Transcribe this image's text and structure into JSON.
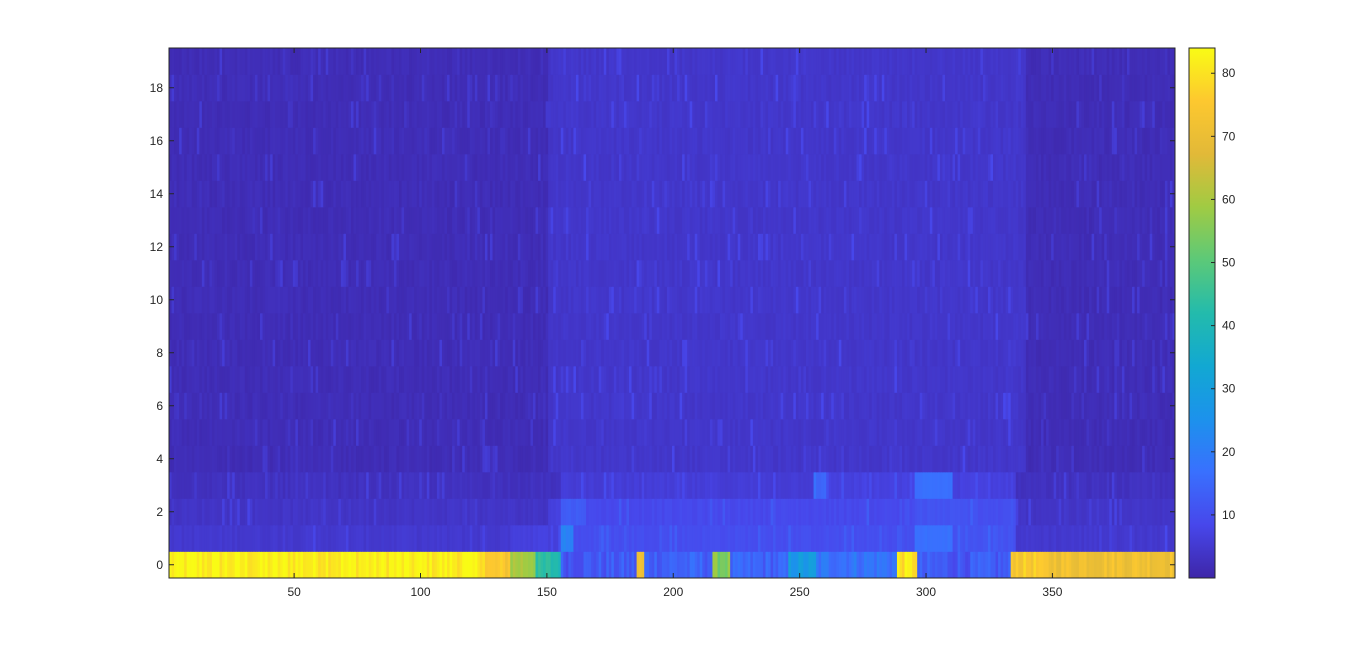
{
  "chart_data": {
    "type": "heatmap",
    "title": "",
    "xlabel": "",
    "ylabel": "",
    "x_range": [
      1,
      398
    ],
    "y_range": [
      0,
      19
    ],
    "xlim": [
      0.5,
      398.5
    ],
    "ylim": [
      -0.5,
      19.5
    ],
    "x_ticks": [
      50,
      100,
      150,
      200,
      250,
      300,
      350
    ],
    "y_ticks": [
      0,
      2,
      4,
      6,
      8,
      10,
      12,
      14,
      16,
      18
    ],
    "colormap": "parula",
    "colorbar": {
      "location": "right",
      "limits": [
        0,
        84
      ],
      "ticks": [
        10,
        20,
        30,
        40,
        50,
        60,
        70,
        80
      ]
    },
    "row_profiles": [
      {
        "y": 0,
        "segments": [
          {
            "x": [
              1,
              125
            ],
            "value": 82
          },
          {
            "x": [
              126,
              135
            ],
            "value": 74
          },
          {
            "x": [
              136,
              145
            ],
            "value": 60
          },
          {
            "x": [
              146,
              155
            ],
            "value": 42
          },
          {
            "x": [
              156,
              185
            ],
            "value": 12
          },
          {
            "x": [
              186,
              188
            ],
            "value": 70
          },
          {
            "x": [
              189,
              215
            ],
            "value": 14
          },
          {
            "x": [
              216,
              222
            ],
            "value": 55
          },
          {
            "x": [
              223,
              245
            ],
            "value": 14
          },
          {
            "x": [
              246,
              256
            ],
            "value": 28
          },
          {
            "x": [
              257,
              288
            ],
            "value": 18
          },
          {
            "x": [
              289,
              296
            ],
            "value": 80
          },
          {
            "x": [
              297,
              333
            ],
            "value": 12
          },
          {
            "x": [
              334,
              345
            ],
            "value": 75
          },
          {
            "x": [
              346,
              398
            ],
            "value": 72
          }
        ]
      },
      {
        "y": 1,
        "segments": [
          {
            "x": [
              1,
              135
            ],
            "value": 4
          },
          {
            "x": [
              136,
              155
            ],
            "value": 6
          },
          {
            "x": [
              156,
              160
            ],
            "value": 20
          },
          {
            "x": [
              161,
              295
            ],
            "value": 9
          },
          {
            "x": [
              296,
              310
            ],
            "value": 16
          },
          {
            "x": [
              311,
              335
            ],
            "value": 10
          },
          {
            "x": [
              336,
              398
            ],
            "value": 4
          }
        ]
      },
      {
        "y": 2,
        "segments": [
          {
            "x": [
              1,
              150
            ],
            "value": 3
          },
          {
            "x": [
              151,
              155
            ],
            "value": 6
          },
          {
            "x": [
              156,
              165
            ],
            "value": 12
          },
          {
            "x": [
              166,
              295
            ],
            "value": 8
          },
          {
            "x": [
              296,
              320
            ],
            "value": 10
          },
          {
            "x": [
              321,
              335
            ],
            "value": 9
          },
          {
            "x": [
              336,
              398
            ],
            "value": 3
          }
        ]
      },
      {
        "y": 3,
        "segments": [
          {
            "x": [
              1,
              155
            ],
            "value": 2
          },
          {
            "x": [
              156,
              255
            ],
            "value": 5
          },
          {
            "x": [
              256,
              260
            ],
            "value": 14
          },
          {
            "x": [
              261,
              295
            ],
            "value": 6
          },
          {
            "x": [
              296,
              310
            ],
            "value": 16
          },
          {
            "x": [
              311,
              335
            ],
            "value": 6
          },
          {
            "x": [
              336,
              398
            ],
            "value": 2
          }
        ]
      }
    ],
    "upper_rows_value_range": [
      1,
      8
    ]
  }
}
